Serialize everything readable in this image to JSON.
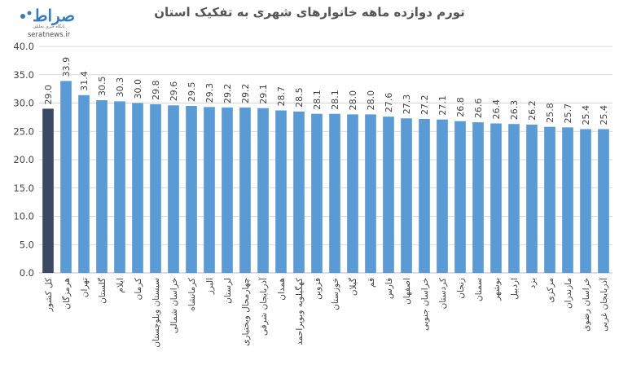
{
  "logo": {
    "script_text": "صراط",
    "subtitle": "پایگاه خبری تحلیلی",
    "site": "seratnews.ir"
  },
  "chart_data": {
    "type": "bar",
    "title": "تورم دوازده ماهه خانوارهای شهری به تفکیک استان",
    "xlabel": "",
    "ylabel": "",
    "ylim": [
      0,
      40
    ],
    "yticks": [
      "0.0",
      "5.0",
      "10.0",
      "15.0",
      "20.0",
      "25.0",
      "30.0",
      "35.0",
      "40.0"
    ],
    "grid": true,
    "colors": {
      "highlight": "#3b4a63",
      "bar": "#5b9bd5"
    },
    "categories": [
      "کل کشور",
      "هرمزگان",
      "تهران",
      "گلستان",
      "ایلام",
      "کرمان",
      "سیستان وبلوچستان",
      "خراسان شمالی",
      "کرمانشاه",
      "البرز",
      "لرستان",
      "چهارمحال وبختیاری",
      "آذربایجان شرقی",
      "همدان",
      "کهگیلویه وبویراحمد",
      "قزوین",
      "خوزستان",
      "گیلان",
      "قم",
      "فارس",
      "اصفهان",
      "خراسان جنوبی",
      "کردستان",
      "زنجان",
      "سمنان",
      "بوشهر",
      "اردبیل",
      "یزد",
      "مرکزی",
      "مازندران",
      "خراسان رضوی",
      "آذربایجان غربی"
    ],
    "values": [
      29.0,
      33.9,
      31.4,
      30.5,
      30.3,
      30.0,
      29.8,
      29.6,
      29.5,
      29.3,
      29.2,
      29.2,
      29.1,
      28.7,
      28.5,
      28.1,
      28.1,
      28.0,
      28.0,
      27.6,
      27.3,
      27.2,
      27.1,
      26.8,
      26.6,
      26.4,
      26.3,
      26.2,
      25.8,
      25.7,
      25.4,
      25.4
    ],
    "labels": [
      "29.0",
      "33.9",
      "31.4",
      "30.5",
      "30.3",
      "30.0",
      "29.8",
      "29.6",
      "29.5",
      "29.3",
      "29.2",
      "29.2",
      "29.1",
      "28.7",
      "28.5",
      "28.1",
      "28.1",
      "28.0",
      "28.0",
      "27.6",
      "27.3",
      "27.2",
      "27.1",
      "26.8",
      "26.6",
      "26.4",
      "26.3",
      "26.2",
      "25.8",
      "25.7",
      "25.4",
      "25.4"
    ]
  }
}
